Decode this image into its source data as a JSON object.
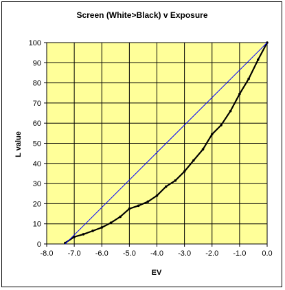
{
  "chart_data": {
    "type": "line",
    "title": "Screen (White>Black) v Exposure",
    "xlabel": "EV",
    "ylabel": "L value",
    "xlim": [
      -8,
      0
    ],
    "ylim": [
      0,
      100
    ],
    "xticks": [
      -8,
      -7,
      -6,
      -5,
      -4,
      -3,
      -2,
      -1,
      0
    ],
    "xtick_labels": [
      "-8.0",
      "-7.0",
      "-6.0",
      "-5.0",
      "-4.0",
      "-3.0",
      "-2.0",
      "-1.0",
      "0.0"
    ],
    "yticks": [
      0,
      10,
      20,
      30,
      40,
      50,
      60,
      70,
      80,
      90,
      100
    ],
    "ytick_labels": [
      "0",
      "10",
      "20",
      "30",
      "40",
      "50",
      "60",
      "70",
      "80",
      "90",
      "100"
    ],
    "grid": true,
    "legend": "none",
    "plot_background": "#FFFF99",
    "series": [
      {
        "color": "#000000",
        "markers": true,
        "x": [
          -7.33,
          -7.0,
          -6.67,
          -6.33,
          -6.0,
          -5.67,
          -5.33,
          -5.0,
          -4.67,
          -4.33,
          -4.0,
          -3.67,
          -3.33,
          -3.0,
          -2.67,
          -2.33,
          -2.0,
          -1.67,
          -1.33,
          -1.0,
          -0.67,
          -0.33,
          0.0
        ],
        "y": [
          0.5,
          3.5,
          4.8,
          6.5,
          8.2,
          10.5,
          13.5,
          17.5,
          19.0,
          21.0,
          24.0,
          28.5,
          31.5,
          36.0,
          41.5,
          47.0,
          54.5,
          59.0,
          66.0,
          74.5,
          82.0,
          91.5,
          100.0
        ]
      },
      {
        "color": "#0000FF",
        "markers": false,
        "x": [
          -7.33,
          0.0
        ],
        "y": [
          0.0,
          100.0
        ]
      }
    ]
  }
}
